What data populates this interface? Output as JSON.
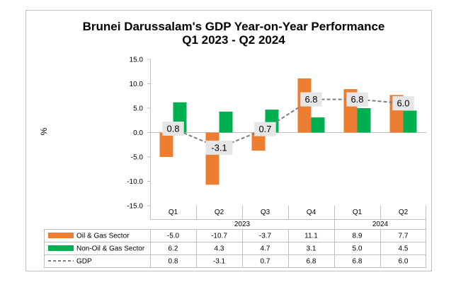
{
  "chart_data": {
    "type": "bar",
    "title": "Brunei Darussalam's GDP Year-on-Year Performance",
    "subtitle": "Q1 2023 - Q2 2024",
    "ylabel": "%",
    "ylim": [
      -15.0,
      15.0
    ],
    "yticks": [
      "15.0",
      "10.0",
      "5.0",
      "0.0",
      "-5.0",
      "-10.0",
      "-15.0"
    ],
    "ytick_values": [
      15,
      10,
      5,
      0,
      -5,
      -10,
      -15
    ],
    "categories": [
      "Q1",
      "Q2",
      "Q3",
      "Q4",
      "Q1",
      "Q2"
    ],
    "years": [
      {
        "label": "2023",
        "span": 4
      },
      {
        "label": "2024",
        "span": 2
      }
    ],
    "series": [
      {
        "name": "Oil & Gas Sector",
        "type": "bar",
        "color": "#ed7d31",
        "values": [
          -5.0,
          -10.7,
          -3.7,
          11.1,
          8.9,
          7.7
        ],
        "labels": [
          "-5.0",
          "-10.7",
          "-3.7",
          "11.1",
          "8.9",
          "7.7"
        ]
      },
      {
        "name": "Non-Oil & Gas Sector",
        "type": "bar",
        "color": "#00b050",
        "values": [
          6.2,
          4.3,
          4.7,
          3.1,
          5.0,
          4.5
        ],
        "labels": [
          "6.2",
          "4.3",
          "4.7",
          "3.1",
          "5.0",
          "4.5"
        ]
      },
      {
        "name": "GDP",
        "type": "line",
        "color": "#7f7f7f",
        "values": [
          0.8,
          -3.1,
          0.7,
          6.8,
          6.8,
          6.0
        ],
        "labels": [
          "0.8",
          "-3.1",
          "0.7",
          "6.8",
          "6.8",
          "6.0"
        ]
      }
    ],
    "data_table": true,
    "grid": false
  }
}
